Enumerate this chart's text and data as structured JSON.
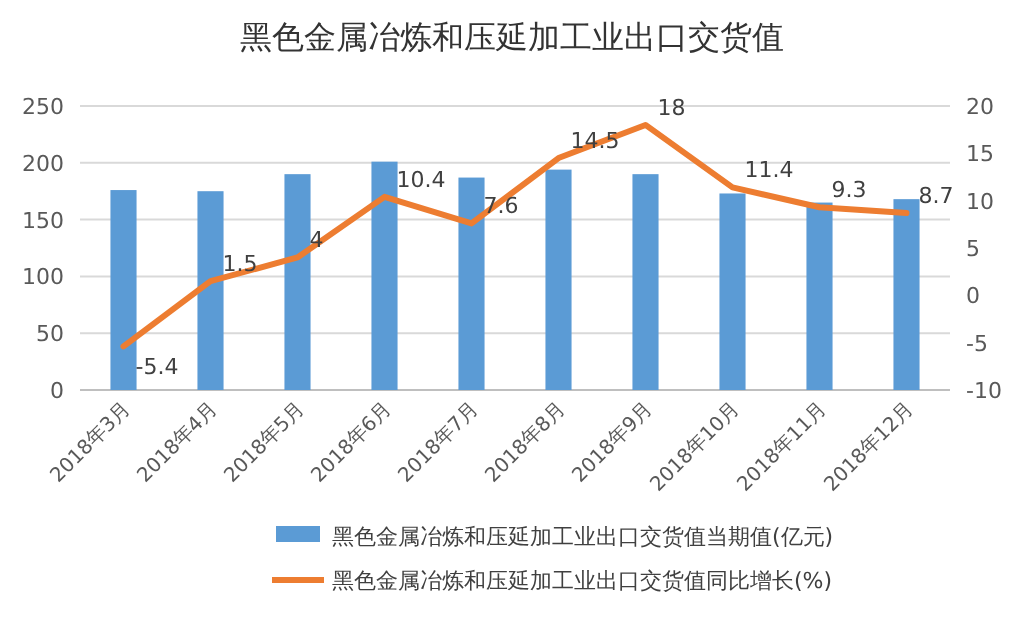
{
  "chart_data": {
    "type": "bar",
    "title": "黑色金属冶炼和压延加工业出口交货值",
    "categories": [
      "2018年3月",
      "2018年4月",
      "2018年5月",
      "2018年6月",
      "2018年7月",
      "2018年8月",
      "2018年9月",
      "2018年10月",
      "2018年11月",
      "2018年12月"
    ],
    "series": [
      {
        "name": "黑色金属冶炼和压延加工业出口交货值当期值(亿元)",
        "color": "#5b9bd5",
        "values": [
          176,
          175,
          190,
          201,
          187,
          194,
          190,
          173,
          165,
          168
        ]
      },
      {
        "name": "黑色金属冶炼和压延加工业出口交货值同比增长(%)",
        "color": "#ed7d31",
        "type": "line",
        "axis": "y2",
        "values": [
          -5.4,
          1.5,
          4,
          10.4,
          7.6,
          14.5,
          18,
          11.4,
          9.3,
          8.7
        ],
        "value_labels": [
          "-5.4",
          "1.5",
          "4",
          "10.4",
          "7.6",
          "14.5",
          "18",
          "11.4",
          "9.3",
          "8.7"
        ]
      }
    ],
    "ylim": [
      0,
      250
    ],
    "yticks": [
      0,
      50,
      100,
      150,
      200,
      250
    ],
    "y2lim": [
      -10,
      20
    ],
    "y2ticks": [
      -10,
      -5,
      0,
      5,
      10,
      15,
      20
    ],
    "grid": "y",
    "legend": "bottom"
  }
}
